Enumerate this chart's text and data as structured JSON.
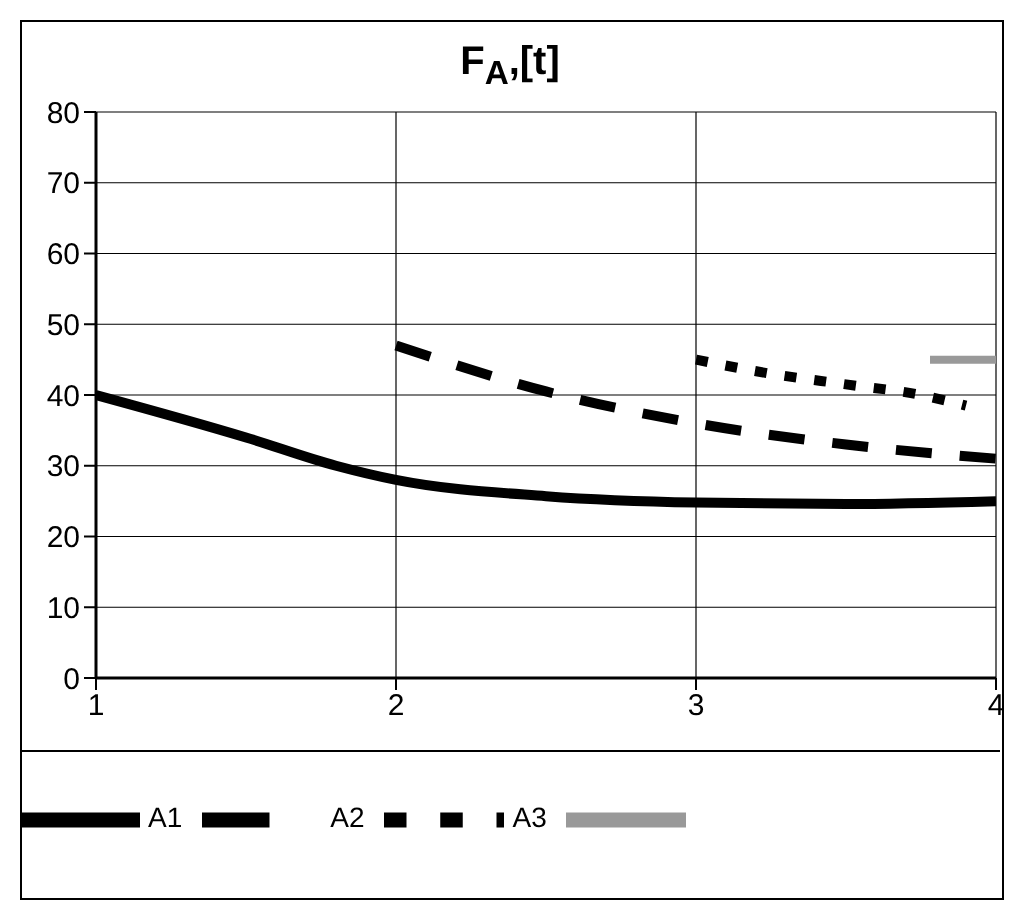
{
  "chart_data": {
    "type": "line",
    "title": "F$_{A}$,[t]",
    "xlim": [
      1,
      4
    ],
    "xticks": [
      1,
      2,
      3,
      4
    ],
    "ylim": [
      0,
      80
    ],
    "yticks": [
      0,
      10,
      20,
      30,
      40,
      50,
      60,
      70,
      80
    ],
    "grid": true,
    "legend": "bottom",
    "marker": "none",
    "series": [
      {
        "name": "A1",
        "color": "#000000",
        "line_style": "solid",
        "x": [
          1,
          1.5,
          1.8,
          2,
          2.5,
          3,
          3.5,
          4
        ],
        "values": [
          40,
          34,
          30,
          28,
          25.7,
          24.8,
          24.6,
          25
        ]
      },
      {
        "name": "A2",
        "color": "#000000",
        "line_style": "dashed",
        "x": [
          2,
          2.5,
          3,
          3.5,
          4
        ],
        "values": [
          47,
          40.5,
          36,
          33,
          31
        ]
      },
      {
        "name": "A3",
        "color": "#000000",
        "line_style": "dotted",
        "x": [
          3,
          3.25,
          3.5,
          3.75,
          3.9
        ],
        "values": [
          45,
          43,
          41.5,
          40,
          38.5
        ]
      },
      {
        "color": "#999999",
        "line_style": "solid",
        "x": [
          3.78,
          4
        ],
        "values": [
          45,
          45
        ]
      }
    ]
  }
}
